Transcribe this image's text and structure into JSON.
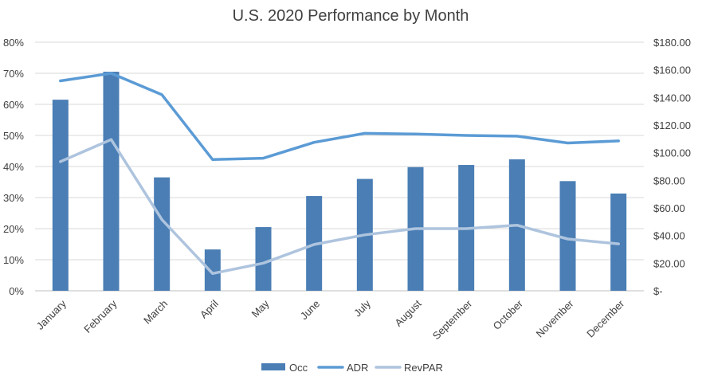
{
  "chart_data": {
    "type": "bar",
    "title": "U.S. 2020 Performance by Month",
    "categories": [
      "January",
      "February",
      "March",
      "April",
      "May",
      "June",
      "July",
      "August",
      "September",
      "October",
      "November",
      "December"
    ],
    "series": [
      {
        "name": "Occ",
        "type": "bar",
        "axis": "left",
        "values": [
          61.5,
          70.5,
          36.5,
          13.3,
          20.5,
          30.5,
          36.0,
          39.8,
          40.5,
          42.3,
          35.3,
          31.3
        ],
        "color": "#4a7eb5"
      },
      {
        "name": "ADR",
        "type": "line",
        "axis": "right",
        "values": [
          152.0,
          157.5,
          142.0,
          95.0,
          96.0,
          107.5,
          114.0,
          113.5,
          112.5,
          112.0,
          107.0,
          108.5
        ],
        "color": "#5b9bd5"
      },
      {
        "name": "RevPAR",
        "type": "line",
        "axis": "right",
        "values": [
          93.5,
          109.5,
          51.5,
          12.5,
          20.0,
          33.5,
          40.5,
          45.0,
          45.0,
          47.5,
          37.5,
          34.0
        ],
        "color": "#aec4de"
      }
    ],
    "left_axis": {
      "ylim": [
        0,
        80
      ],
      "ticks": [
        "0%",
        "10%",
        "20%",
        "30%",
        "40%",
        "50%",
        "60%",
        "70%",
        "80%"
      ]
    },
    "right_axis": {
      "ylim": [
        0,
        180
      ],
      "ticks": [
        "$-",
        "$20.00",
        "$40.00",
        "$60.00",
        "$80.00",
        "$100.00",
        "$120.00",
        "$140.00",
        "$160.00",
        "$180.00"
      ]
    },
    "grid": true,
    "legend_position": "bottom"
  }
}
